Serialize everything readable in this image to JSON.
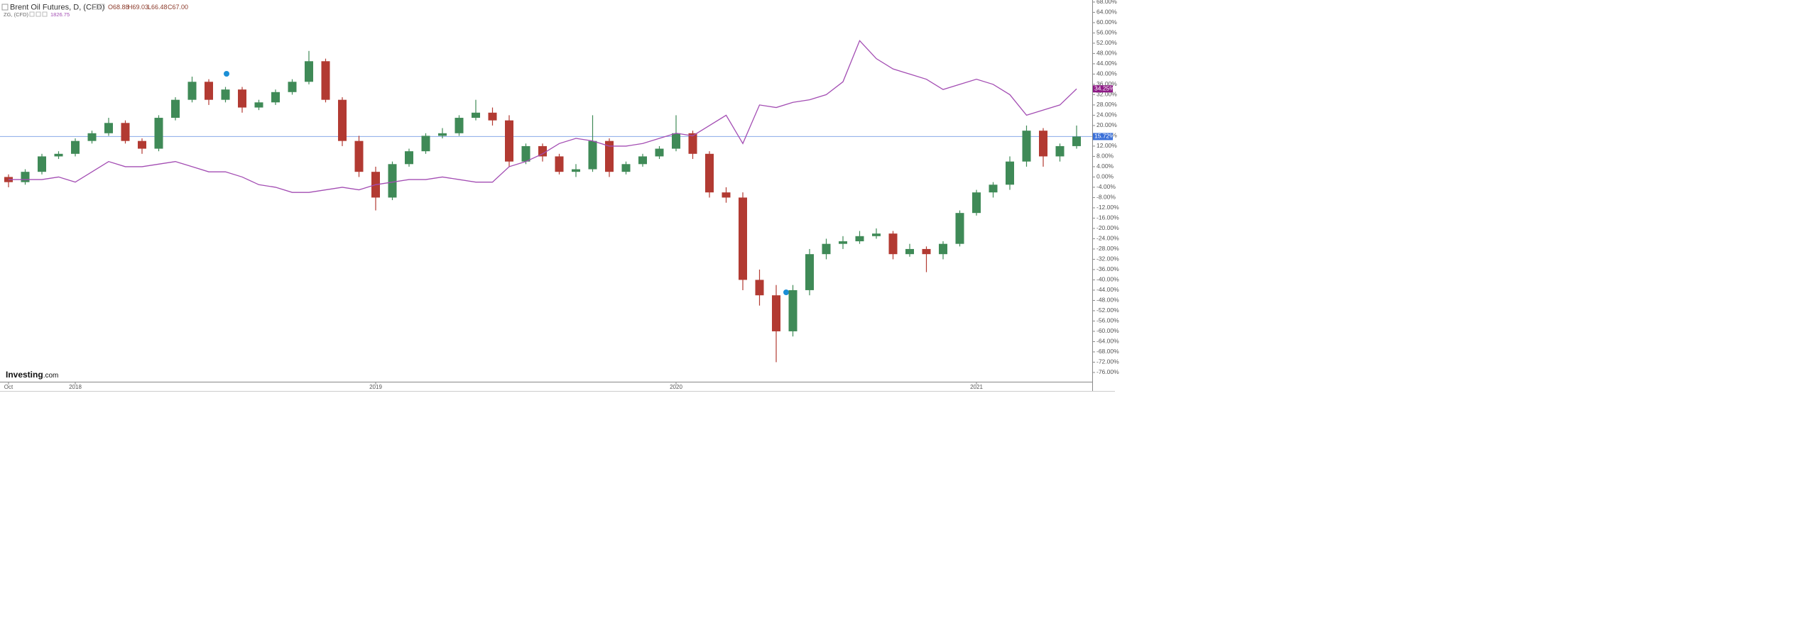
{
  "chart_data": {
    "type": "candlestick",
    "header": {
      "title": "Brent Oil Futures, D, (CFD)",
      "quote": [
        "O68.88",
        "H69.03",
        "L66.48",
        "C67.00"
      ],
      "compare_title": "ZG, (CFD)",
      "compare_quote": "1826.75"
    },
    "logo": [
      "Investing",
      ".com"
    ],
    "categories": [
      "Oct",
      null,
      null,
      null,
      "2018",
      null,
      null,
      null,
      null,
      null,
      null,
      null,
      null,
      null,
      null,
      null,
      null,
      null,
      null,
      null,
      null,
      null,
      "2019",
      null,
      null,
      null,
      null,
      null,
      null,
      null,
      null,
      null,
      null,
      null,
      null,
      null,
      null,
      null,
      null,
      null,
      "2020",
      null,
      null,
      null,
      null,
      null,
      null,
      null,
      null,
      null,
      null,
      null,
      null,
      null,
      null,
      null,
      null,
      null,
      "2021",
      null,
      null,
      null,
      null,
      null,
      null
    ],
    "series": [
      {
        "name": "Brent Oil Futures",
        "type": "candlestick",
        "up_color": "#3f8a57",
        "down_color": "#b23a32",
        "open": [
          0,
          -2,
          2,
          8,
          9,
          14,
          17,
          21,
          14,
          11,
          23,
          30,
          37,
          30,
          34,
          27,
          29,
          33,
          37,
          45,
          30,
          14,
          2,
          -8,
          5,
          10,
          16,
          17,
          23,
          25,
          22,
          6,
          12,
          8,
          2,
          3,
          14,
          2,
          5,
          8,
          11,
          17,
          9,
          -6,
          -8,
          -40,
          -46,
          -60,
          -44,
          -30,
          -26,
          -25,
          -23,
          -22,
          -30,
          -28,
          -30,
          -26,
          -14,
          -6,
          -3,
          6,
          18,
          8,
          12
        ],
        "high": [
          1,
          3,
          9,
          10,
          15,
          18,
          23,
          22,
          15,
          24,
          31,
          39,
          38,
          35,
          35,
          30,
          34,
          38,
          49,
          46,
          31,
          16,
          4,
          6,
          11,
          17,
          19,
          24,
          30,
          27,
          24,
          13,
          13,
          9,
          5,
          24,
          15,
          6,
          9,
          12,
          24,
          18,
          10,
          -4,
          -6,
          -36,
          -42,
          -42,
          -28,
          -24,
          -23,
          -21,
          -20,
          -21,
          -26,
          -27,
          -25,
          -13,
          -5,
          -2,
          8,
          20,
          19,
          13,
          20
        ],
        "low": [
          -4,
          -3,
          1,
          7,
          8,
          13,
          16,
          13,
          9,
          10,
          22,
          29,
          28,
          29,
          25,
          26,
          28,
          32,
          36,
          29,
          12,
          0,
          -13,
          -9,
          4,
          9,
          15,
          16,
          22,
          20,
          4,
          5,
          6,
          1,
          0,
          2,
          0,
          1,
          4,
          7,
          10,
          7,
          -8,
          -10,
          -44,
          -50,
          -72,
          -62,
          -46,
          -32,
          -28,
          -26,
          -24,
          -32,
          -31,
          -37,
          -32,
          -27,
          -15,
          -8,
          -5,
          4,
          4,
          6,
          11
        ],
        "close": [
          -2,
          2,
          8,
          9,
          14,
          17,
          21,
          14,
          11,
          23,
          30,
          37,
          30,
          34,
          27,
          29,
          33,
          37,
          45,
          30,
          14,
          2,
          -8,
          5,
          10,
          16,
          17,
          23,
          25,
          22,
          6,
          12,
          8,
          2,
          3,
          14,
          2,
          5,
          8,
          11,
          17,
          9,
          -6,
          -8,
          -40,
          -46,
          -60,
          -44,
          -30,
          -26,
          -25,
          -23,
          -22,
          -30,
          -28,
          -30,
          -26,
          -14,
          -6,
          -3,
          6,
          18,
          8,
          12,
          15.72
        ]
      },
      {
        "name": "ZG",
        "type": "line",
        "color": "#a34db3",
        "values": [
          -1,
          -1,
          -1,
          0,
          -2,
          2,
          6,
          4,
          4,
          5,
          6,
          4,
          2,
          2,
          0,
          -3,
          -4,
          -6,
          -6,
          -5,
          -4,
          -5,
          -3,
          -2,
          -1,
          -1,
          0,
          -1,
          -2,
          -2,
          4,
          6,
          9,
          13,
          15,
          14,
          12,
          12,
          13,
          15,
          17,
          16,
          20,
          24,
          13,
          28,
          27,
          29,
          30,
          32,
          37,
          53,
          46,
          42,
          40,
          38,
          34,
          36,
          38,
          36,
          32,
          24,
          26,
          28,
          34.25
        ]
      }
    ],
    "price_line": {
      "value": 15.72,
      "label": "15.72%",
      "color": "#3a6fd8"
    },
    "compare_last": {
      "value": 34.25,
      "label": "34.25%",
      "color": "#8e1a86"
    },
    "ylim": [
      -79.6,
      68.8
    ],
    "yticks": [
      {
        "value": 68,
        "label": "68.00%"
      },
      {
        "value": 64,
        "label": "64.00%"
      },
      {
        "value": 60,
        "label": "60.00%"
      },
      {
        "value": 56,
        "label": "56.00%"
      },
      {
        "value": 52,
        "label": "52.00%"
      },
      {
        "value": 48,
        "label": "48.00%"
      },
      {
        "value": 44,
        "label": "44.00%"
      },
      {
        "value": 40,
        "label": "40.00%"
      },
      {
        "value": 36,
        "label": "36.00%"
      },
      {
        "value": 32,
        "label": "32.00%"
      },
      {
        "value": 28,
        "label": "28.00%"
      },
      {
        "value": 24,
        "label": "24.00%"
      },
      {
        "value": 20,
        "label": "20.00%"
      },
      {
        "value": 16,
        "label": "16.00%"
      },
      {
        "value": 12,
        "label": "12.00%"
      },
      {
        "value": 8,
        "label": "8.00%"
      },
      {
        "value": 4,
        "label": "4.00%"
      },
      {
        "value": 0,
        "label": "0.00%"
      },
      {
        "value": -4,
        "label": "-4.00%"
      },
      {
        "value": -8,
        "label": "-8.00%"
      },
      {
        "value": -12,
        "label": "-12.00%"
      },
      {
        "value": -16,
        "label": "-16.00%"
      },
      {
        "value": -20,
        "label": "-20.00%"
      },
      {
        "value": -24,
        "label": "-24.00%"
      },
      {
        "value": -28,
        "label": "-28.00%"
      },
      {
        "value": -32,
        "label": "-32.00%"
      },
      {
        "value": -36,
        "label": "-36.00%"
      },
      {
        "value": -40,
        "label": "-40.00%"
      },
      {
        "value": -44,
        "label": "-44.00%"
      },
      {
        "value": -48,
        "label": "-48.00%"
      },
      {
        "value": -52,
        "label": "-52.00%"
      },
      {
        "value": -56,
        "label": "-56.00%"
      },
      {
        "value": -60,
        "label": "-60.00%"
      },
      {
        "value": -64,
        "label": "-64.00%"
      },
      {
        "value": -68,
        "label": "-68.00%"
      },
      {
        "value": -72,
        "label": "-72.00%"
      },
      {
        "value": -76,
        "label": "-76.00%"
      }
    ]
  }
}
